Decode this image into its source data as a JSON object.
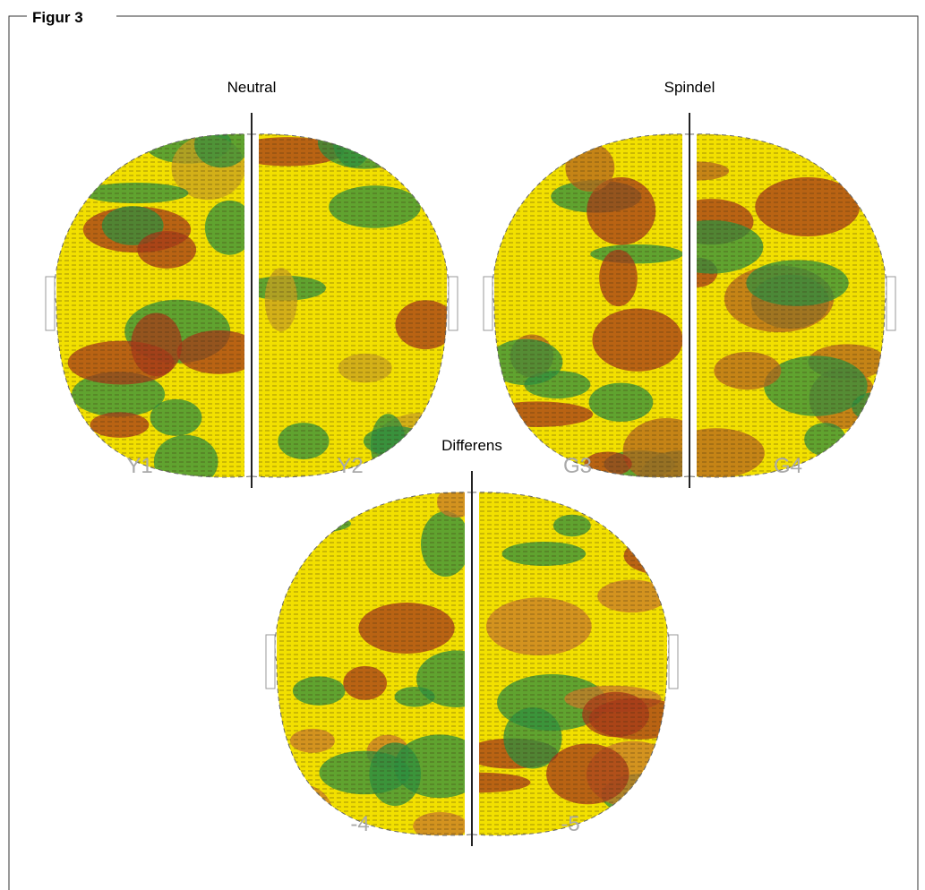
{
  "figure": {
    "label": "Figur 3",
    "panels": [
      {
        "title": "Neutral",
        "left_label": "Y1",
        "right_label": "Y2"
      },
      {
        "title": "Spindel",
        "left_label": "G3",
        "right_label": "G4"
      },
      {
        "title": "Differens",
        "left_label": "-4",
        "right_label": "-5"
      }
    ]
  }
}
